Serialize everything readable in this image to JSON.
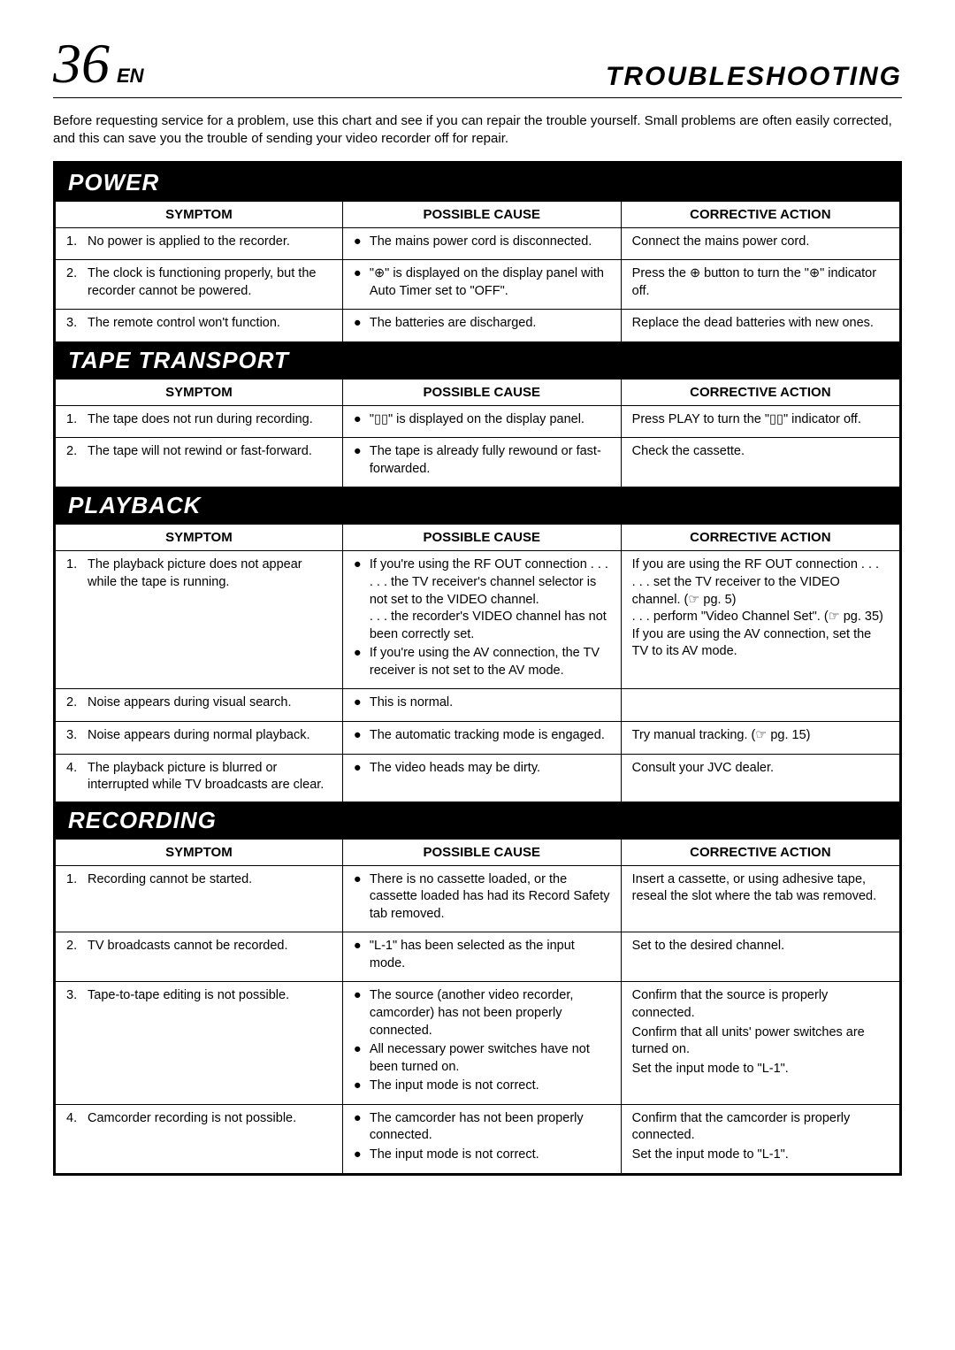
{
  "header": {
    "page_number": "36",
    "lang_suffix": "EN",
    "title": "TROUBLESHOOTING"
  },
  "intro": "Before requesting service for a problem, use this chart and see if you can repair the trouble yourself. Small problems are often easily corrected, and this can save you the trouble of sending your video recorder off for repair.",
  "column_headers": {
    "symptom": "SYMPTOM",
    "cause": "POSSIBLE CAUSE",
    "action": "CORRECTIVE ACTION"
  },
  "sections": [
    {
      "title": "POWER",
      "rows": [
        {
          "num": "1.",
          "symptom": "No power is applied to the recorder.",
          "causes": [
            "The mains power cord is disconnected."
          ],
          "actions": [
            "Connect the mains power cord."
          ]
        },
        {
          "num": "2.",
          "symptom": "The clock is functioning properly, but the recorder cannot be powered.",
          "causes": [
            "\"⊕\" is displayed on the display panel with Auto Timer set to \"OFF\"."
          ],
          "actions": [
            "Press the ⊕ button to turn the \"⊕\" indicator off."
          ]
        },
        {
          "num": "3.",
          "symptom": "The remote control won't function.",
          "causes": [
            "The batteries are discharged."
          ],
          "actions": [
            "Replace the dead batteries with new ones."
          ]
        }
      ]
    },
    {
      "title": "TAPE TRANSPORT",
      "rows": [
        {
          "num": "1.",
          "symptom": "The tape does not run during recording.",
          "causes": [
            "\"▯▯\" is displayed on the display panel."
          ],
          "actions": [
            "Press PLAY to turn the \"▯▯\" indicator off."
          ]
        },
        {
          "num": "2.",
          "symptom": "The tape will not rewind or fast-forward.",
          "causes": [
            "The tape is already fully rewound or fast-forwarded."
          ],
          "actions": [
            "Check the cassette."
          ]
        }
      ]
    },
    {
      "title": "PLAYBACK",
      "rows": [
        {
          "num": "1.",
          "symptom": "The playback picture does not appear while the tape is running.",
          "causes": [
            "If you're using the RF OUT connection . . .\n. . . the TV receiver's channel selector is not set to the VIDEO channel.\n. . . the recorder's VIDEO channel has not been correctly set.",
            "If you're using the AV connection, the TV receiver is not set to the AV mode."
          ],
          "actions": [
            "If you are using the RF OUT connection . . .\n. . . set the TV receiver to the VIDEO channel. (☞ pg. 5)\n. . . perform \"Video Channel Set\". (☞ pg. 35)\nIf you are using the AV connection, set the TV to its AV mode."
          ]
        },
        {
          "num": "2.",
          "symptom": "Noise appears during visual search.",
          "causes": [
            "This is normal."
          ],
          "actions": [
            ""
          ]
        },
        {
          "num": "3.",
          "symptom": "Noise appears during normal playback.",
          "causes": [
            "The automatic tracking mode is engaged."
          ],
          "actions": [
            "Try manual tracking. (☞ pg. 15)"
          ]
        },
        {
          "num": "4.",
          "symptom": "The playback picture is blurred or interrupted while TV broadcasts are clear.",
          "causes": [
            "The video heads may be dirty."
          ],
          "actions": [
            "Consult your JVC dealer."
          ]
        }
      ]
    },
    {
      "title": "RECORDING",
      "rows": [
        {
          "num": "1.",
          "symptom": "Recording cannot be started.",
          "causes": [
            "There is no cassette loaded, or the cassette loaded has had its Record Safety tab removed."
          ],
          "actions": [
            "Insert a cassette, or using adhesive tape, reseal the slot where the tab was removed."
          ]
        },
        {
          "num": "2.",
          "symptom": "TV broadcasts cannot be recorded.",
          "causes": [
            "\"L-1\" has been selected as the input mode."
          ],
          "actions": [
            "Set to the desired channel."
          ]
        },
        {
          "num": "3.",
          "symptom": "Tape-to-tape editing is not possible.",
          "causes": [
            "The source (another video recorder, camcorder) has not been properly connected.",
            "All necessary power switches have not been turned on.",
            "The input mode is not correct."
          ],
          "actions": [
            "Confirm that the source is properly connected.",
            "Confirm that all units' power switches are turned on.",
            "Set the input mode to \"L-1\"."
          ]
        },
        {
          "num": "4.",
          "symptom": "Camcorder recording is not possible.",
          "causes": [
            "The camcorder has not been properly connected.",
            "The input mode is not correct."
          ],
          "actions": [
            "Confirm that the camcorder is properly connected.",
            "Set the input mode to \"L-1\"."
          ]
        }
      ]
    }
  ],
  "style": {
    "page_bg": "#ffffff",
    "text_color": "#000000",
    "section_bar_bg": "#000000",
    "section_bar_fg": "#ffffff",
    "border_color": "#000000",
    "page_num_fontsize": 64,
    "title_fontsize": 30,
    "section_fontsize": 26,
    "body_fontsize": 14.5
  }
}
